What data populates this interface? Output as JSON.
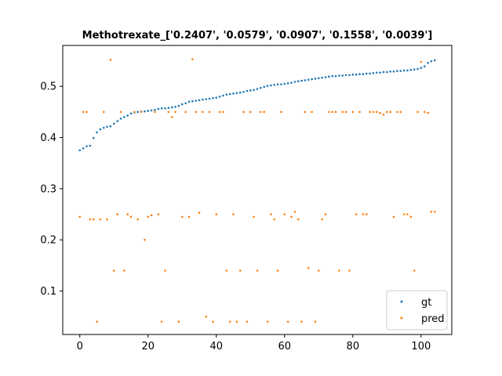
{
  "chart_data": {
    "type": "scatter",
    "title": "Methotrexate_['0.2407', '0.0579', '0.0907', '0.1558', '0.0039']",
    "xlabel": "",
    "ylabel": "",
    "xlim": [
      -5,
      109
    ],
    "ylim": [
      0.015,
      0.58
    ],
    "xticks": [
      0,
      20,
      40,
      60,
      80,
      100
    ],
    "yticks": [
      0.1,
      0.2,
      0.3,
      0.4,
      0.5
    ],
    "xtick_labels": [
      "0",
      "20",
      "40",
      "60",
      "80",
      "100"
    ],
    "ytick_labels": [
      "0.1",
      "0.2",
      "0.3",
      "0.4",
      "0.5"
    ],
    "grid": false,
    "legend": {
      "position": "lower-right"
    },
    "series": [
      {
        "name": "gt",
        "color": "#1f77b4",
        "points": [
          [
            0,
            0.375
          ],
          [
            1,
            0.379
          ],
          [
            2,
            0.383
          ],
          [
            3,
            0.384
          ],
          [
            4,
            0.399
          ],
          [
            5,
            0.41
          ],
          [
            6,
            0.416
          ],
          [
            7,
            0.419
          ],
          [
            8,
            0.421
          ],
          [
            9,
            0.422
          ],
          [
            10,
            0.427
          ],
          [
            11,
            0.432
          ],
          [
            12,
            0.437
          ],
          [
            13,
            0.44
          ],
          [
            14,
            0.443
          ],
          [
            15,
            0.447
          ],
          [
            16,
            0.449
          ],
          [
            17,
            0.45
          ],
          [
            18,
            0.451
          ],
          [
            19,
            0.451
          ],
          [
            20,
            0.452
          ],
          [
            21,
            0.453
          ],
          [
            22,
            0.454
          ],
          [
            23,
            0.456
          ],
          [
            24,
            0.457
          ],
          [
            25,
            0.457
          ],
          [
            26,
            0.458
          ],
          [
            27,
            0.459
          ],
          [
            28,
            0.46
          ],
          [
            29,
            0.462
          ],
          [
            30,
            0.465
          ],
          [
            31,
            0.467
          ],
          [
            32,
            0.47
          ],
          [
            33,
            0.471
          ],
          [
            34,
            0.472
          ],
          [
            35,
            0.473
          ],
          [
            36,
            0.474
          ],
          [
            37,
            0.475
          ],
          [
            38,
            0.476
          ],
          [
            39,
            0.477
          ],
          [
            40,
            0.478
          ],
          [
            41,
            0.48
          ],
          [
            42,
            0.482
          ],
          [
            43,
            0.484
          ],
          [
            44,
            0.485
          ],
          [
            45,
            0.486
          ],
          [
            46,
            0.487
          ],
          [
            47,
            0.488
          ],
          [
            48,
            0.489
          ],
          [
            49,
            0.491
          ],
          [
            50,
            0.492
          ],
          [
            51,
            0.493
          ],
          [
            52,
            0.495
          ],
          [
            53,
            0.497
          ],
          [
            54,
            0.499
          ],
          [
            55,
            0.501
          ],
          [
            56,
            0.502
          ],
          [
            57,
            0.503
          ],
          [
            58,
            0.504
          ],
          [
            59,
            0.504
          ],
          [
            60,
            0.505
          ],
          [
            61,
            0.506
          ],
          [
            62,
            0.507
          ],
          [
            63,
            0.509
          ],
          [
            64,
            0.51
          ],
          [
            65,
            0.511
          ],
          [
            66,
            0.512
          ],
          [
            67,
            0.513
          ],
          [
            68,
            0.514
          ],
          [
            69,
            0.515
          ],
          [
            70,
            0.516
          ],
          [
            71,
            0.517
          ],
          [
            72,
            0.518
          ],
          [
            73,
            0.519
          ],
          [
            74,
            0.52
          ],
          [
            75,
            0.52
          ],
          [
            76,
            0.521
          ],
          [
            77,
            0.521
          ],
          [
            78,
            0.522
          ],
          [
            79,
            0.522
          ],
          [
            80,
            0.523
          ],
          [
            81,
            0.523
          ],
          [
            82,
            0.524
          ],
          [
            83,
            0.524
          ],
          [
            84,
            0.525
          ],
          [
            85,
            0.525
          ],
          [
            86,
            0.526
          ],
          [
            87,
            0.527
          ],
          [
            88,
            0.527
          ],
          [
            89,
            0.528
          ],
          [
            90,
            0.528
          ],
          [
            91,
            0.529
          ],
          [
            92,
            0.529
          ],
          [
            93,
            0.53
          ],
          [
            94,
            0.53
          ],
          [
            95,
            0.531
          ],
          [
            96,
            0.531
          ],
          [
            97,
            0.532
          ],
          [
            98,
            0.533
          ],
          [
            99,
            0.534
          ],
          [
            100,
            0.536
          ],
          [
            101,
            0.539
          ],
          [
            102,
            0.546
          ],
          [
            103,
            0.549
          ],
          [
            104,
            0.551
          ]
        ]
      },
      {
        "name": "pred",
        "color": "#ff7f0e",
        "points": [
          [
            0,
            0.245
          ],
          [
            1,
            0.45
          ],
          [
            2,
            0.45
          ],
          [
            3,
            0.24
          ],
          [
            4,
            0.24
          ],
          [
            5,
            0.04
          ],
          [
            6,
            0.24
          ],
          [
            7,
            0.45
          ],
          [
            8,
            0.24
          ],
          [
            9,
            0.552
          ],
          [
            10,
            0.14
          ],
          [
            11,
            0.25
          ],
          [
            12,
            0.45
          ],
          [
            13,
            0.14
          ],
          [
            14,
            0.25
          ],
          [
            15,
            0.245
          ],
          [
            16,
            0.45
          ],
          [
            17,
            0.24
          ],
          [
            18,
            0.45
          ],
          [
            19,
            0.2
          ],
          [
            20,
            0.245
          ],
          [
            21,
            0.248
          ],
          [
            22,
            0.45
          ],
          [
            23,
            0.25
          ],
          [
            24,
            0.04
          ],
          [
            25,
            0.14
          ],
          [
            26,
            0.45
          ],
          [
            27,
            0.44
          ],
          [
            28,
            0.45
          ],
          [
            29,
            0.04
          ],
          [
            30,
            0.245
          ],
          [
            31,
            0.45
          ],
          [
            32,
            0.245
          ],
          [
            33,
            0.553
          ],
          [
            34,
            0.45
          ],
          [
            35,
            0.253
          ],
          [
            36,
            0.45
          ],
          [
            37,
            0.05
          ],
          [
            38,
            0.45
          ],
          [
            39,
            0.04
          ],
          [
            40,
            0.25
          ],
          [
            41,
            0.45
          ],
          [
            42,
            0.45
          ],
          [
            43,
            0.14
          ],
          [
            44,
            0.04
          ],
          [
            45,
            0.25
          ],
          [
            46,
            0.04
          ],
          [
            47,
            0.14
          ],
          [
            48,
            0.45
          ],
          [
            49,
            0.04
          ],
          [
            50,
            0.45
          ],
          [
            51,
            0.245
          ],
          [
            52,
            0.14
          ],
          [
            53,
            0.45
          ],
          [
            54,
            0.45
          ],
          [
            55,
            0.04
          ],
          [
            56,
            0.25
          ],
          [
            57,
            0.24
          ],
          [
            58,
            0.14
          ],
          [
            59,
            0.45
          ],
          [
            60,
            0.25
          ],
          [
            61,
            0.04
          ],
          [
            62,
            0.245
          ],
          [
            63,
            0.255
          ],
          [
            64,
            0.24
          ],
          [
            65,
            0.04
          ],
          [
            66,
            0.45
          ],
          [
            67,
            0.145
          ],
          [
            68,
            0.45
          ],
          [
            69,
            0.04
          ],
          [
            70,
            0.14
          ],
          [
            71,
            0.24
          ],
          [
            72,
            0.25
          ],
          [
            73,
            0.45
          ],
          [
            74,
            0.45
          ],
          [
            75,
            0.45
          ],
          [
            76,
            0.14
          ],
          [
            77,
            0.45
          ],
          [
            78,
            0.45
          ],
          [
            79,
            0.14
          ],
          [
            80,
            0.45
          ],
          [
            81,
            0.25
          ],
          [
            82,
            0.45
          ],
          [
            83,
            0.25
          ],
          [
            84,
            0.25
          ],
          [
            85,
            0.45
          ],
          [
            86,
            0.45
          ],
          [
            87,
            0.45
          ],
          [
            88,
            0.448
          ],
          [
            89,
            0.445
          ],
          [
            90,
            0.45
          ],
          [
            91,
            0.45
          ],
          [
            92,
            0.245
          ],
          [
            93,
            0.45
          ],
          [
            94,
            0.45
          ],
          [
            95,
            0.25
          ],
          [
            96,
            0.25
          ],
          [
            97,
            0.245
          ],
          [
            98,
            0.14
          ],
          [
            99,
            0.45
          ],
          [
            100,
            0.548
          ],
          [
            101,
            0.45
          ],
          [
            102,
            0.448
          ],
          [
            103,
            0.255
          ],
          [
            104,
            0.255
          ]
        ]
      }
    ]
  }
}
